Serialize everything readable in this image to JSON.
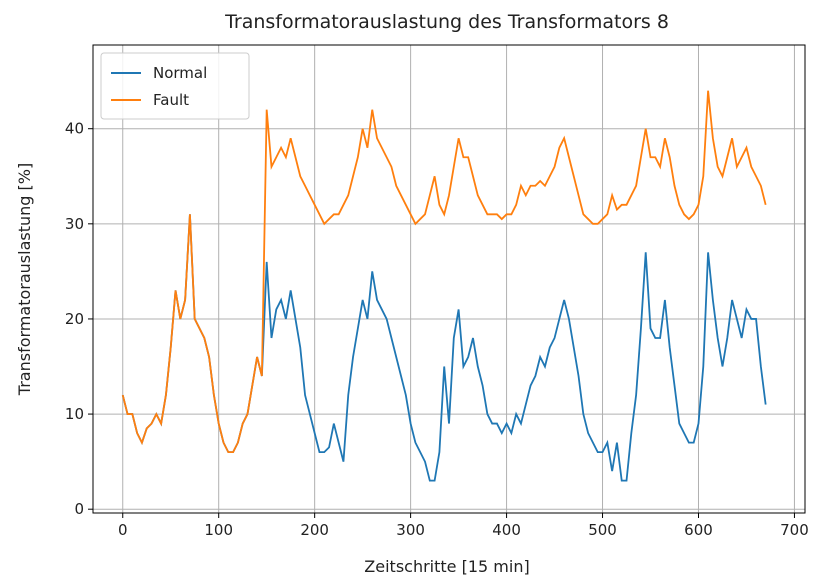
{
  "chart_data": {
    "type": "line",
    "title": "Transformatorauslastung des Transformators  8",
    "xlabel": "Zeitschritte [15 min]",
    "ylabel": "Transformatorauslastung [%]",
    "x": [
      0,
      5,
      10,
      15,
      20,
      25,
      30,
      35,
      40,
      45,
      50,
      55,
      60,
      65,
      70,
      75,
      80,
      85,
      90,
      95,
      100,
      105,
      110,
      115,
      120,
      125,
      130,
      135,
      140,
      145,
      150,
      155,
      160,
      165,
      170,
      175,
      180,
      185,
      190,
      195,
      200,
      205,
      210,
      215,
      220,
      225,
      230,
      235,
      240,
      245,
      250,
      255,
      260,
      265,
      270,
      275,
      280,
      285,
      290,
      295,
      300,
      305,
      310,
      315,
      320,
      325,
      330,
      335,
      340,
      345,
      350,
      355,
      360,
      365,
      370,
      375,
      380,
      385,
      390,
      395,
      400,
      405,
      410,
      415,
      420,
      425,
      430,
      435,
      440,
      445,
      450,
      455,
      460,
      465,
      470,
      475,
      480,
      485,
      490,
      495,
      500,
      505,
      510,
      515,
      520,
      525,
      530,
      535,
      540,
      545,
      550,
      555,
      560,
      565,
      570,
      575,
      580,
      585,
      590,
      595,
      600,
      605,
      610,
      615,
      620,
      625,
      630,
      635,
      640,
      645,
      650,
      655,
      660,
      665,
      670
    ],
    "series": [
      {
        "name": "Normal",
        "color": "#1f77b4",
        "values": [
          12,
          10,
          10,
          8,
          7,
          8.5,
          9,
          10,
          9,
          12,
          17,
          23,
          20,
          22,
          31,
          20,
          19,
          18,
          16,
          12,
          9,
          7,
          6,
          6,
          7,
          9,
          10,
          13,
          16,
          14,
          26,
          18,
          21,
          22,
          20,
          23,
          20,
          17,
          12,
          10,
          8,
          6,
          6,
          6.5,
          9,
          7,
          5,
          12,
          16,
          19,
          22,
          20,
          25,
          22,
          21,
          20,
          18,
          16,
          14,
          12,
          9,
          7,
          6,
          5,
          3,
          3,
          6,
          15,
          9,
          18,
          21,
          15,
          16,
          18,
          15,
          13,
          10,
          9,
          9,
          8,
          9,
          8,
          10,
          9,
          11,
          13,
          14,
          16,
          15,
          17,
          18,
          20,
          22,
          20,
          17,
          14,
          10,
          8,
          7,
          6,
          6,
          7,
          4,
          7,
          3,
          3,
          8,
          12,
          19,
          27,
          19,
          18,
          18,
          22,
          17,
          13,
          9,
          8,
          7,
          7,
          9,
          15,
          27,
          22,
          18,
          15,
          18,
          22,
          20,
          18,
          21,
          20,
          20,
          15,
          11
        ]
      },
      {
        "name": "Fault",
        "color": "#ff7f0e",
        "values": [
          12,
          10,
          10,
          8,
          7,
          8.5,
          9,
          10,
          9,
          12,
          17,
          23,
          20,
          22,
          31,
          20,
          19,
          18,
          16,
          12,
          9,
          7,
          6,
          6,
          7,
          9,
          10,
          13,
          16,
          14,
          42,
          36,
          37,
          38,
          37,
          39,
          37,
          35,
          34,
          33,
          32,
          31,
          30,
          30.5,
          31,
          31,
          32,
          33,
          35,
          37,
          40,
          38,
          42,
          39,
          38,
          37,
          36,
          34,
          33,
          32,
          31,
          30,
          30.5,
          31,
          33,
          35,
          32,
          31,
          33,
          36,
          39,
          37,
          37,
          35,
          33,
          32,
          31,
          31,
          31,
          30.5,
          31,
          31,
          32,
          34,
          33,
          34,
          34,
          34.5,
          34,
          35,
          36,
          38,
          39,
          37,
          35,
          33,
          31,
          30.5,
          30,
          30,
          30.5,
          31,
          33,
          31.5,
          32,
          32,
          33,
          34,
          37,
          40,
          37,
          37,
          36,
          39,
          37,
          34,
          32,
          31,
          30.5,
          31,
          32,
          35,
          44,
          39,
          36,
          35,
          37,
          39,
          36,
          37,
          38,
          36,
          35,
          34,
          32
        ]
      }
    ],
    "xlim": [
      -31,
      711
    ],
    "ylim": [
      -0.4,
      48.8
    ],
    "xticks": [
      0,
      100,
      200,
      300,
      400,
      500,
      600,
      700
    ],
    "yticks": [
      0,
      10,
      20,
      30,
      40
    ],
    "grid": true,
    "legend": "upper left"
  }
}
